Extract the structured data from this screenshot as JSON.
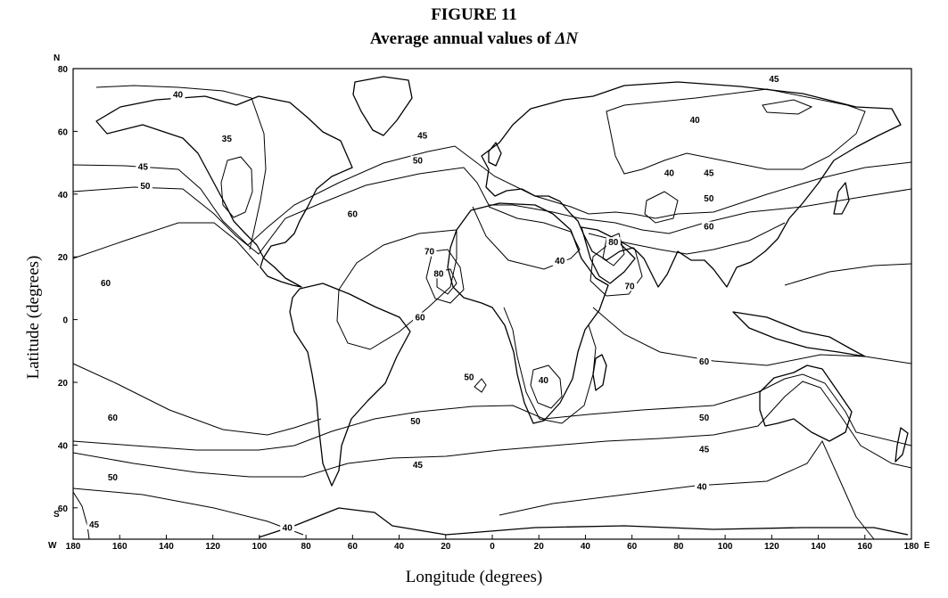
{
  "figure": {
    "title": "FIGURE 11",
    "subtitle_prefix": "Average annual values of ",
    "subtitle_symbol": "ΔN"
  },
  "axes": {
    "y_label": "Latitude (degrees)",
    "x_label": "Longitude (degrees)",
    "lat_ticks": [
      "80",
      "60",
      "40",
      "20",
      "0",
      "20",
      "40",
      "60"
    ],
    "lon_ticks": [
      "180",
      "160",
      "140",
      "120",
      "100",
      "80",
      "60",
      "40",
      "20",
      "0",
      "20",
      "40",
      "60",
      "80",
      "100",
      "120",
      "140",
      "160",
      "180"
    ],
    "north": "N",
    "south": "S",
    "west": "W",
    "east": "E",
    "lat_range": [
      -70,
      80
    ],
    "lon_range": [
      -180,
      180
    ]
  },
  "contour_labels": [
    {
      "text": "40",
      "lon": -135,
      "lat": 71
    },
    {
      "text": "35",
      "lon": -114,
      "lat": 57
    },
    {
      "text": "45",
      "lon": -150,
      "lat": 48
    },
    {
      "text": "50",
      "lon": -149,
      "lat": 42
    },
    {
      "text": "45",
      "lon": -30,
      "lat": 58
    },
    {
      "text": "50",
      "lon": -32,
      "lat": 50
    },
    {
      "text": "60",
      "lon": -60,
      "lat": 33
    },
    {
      "text": "60",
      "lon": -166,
      "lat": 11
    },
    {
      "text": "70",
      "lon": -27,
      "lat": 21
    },
    {
      "text": "80",
      "lon": -23,
      "lat": 14
    },
    {
      "text": "60",
      "lon": -31,
      "lat": 0
    },
    {
      "text": "40",
      "lon": 29,
      "lat": 18
    },
    {
      "text": "80",
      "lon": 52,
      "lat": 24
    },
    {
      "text": "70",
      "lon": 59,
      "lat": 10
    },
    {
      "text": "45",
      "lon": 121,
      "lat": 76
    },
    {
      "text": "40",
      "lon": 87,
      "lat": 63
    },
    {
      "text": "40",
      "lon": 76,
      "lat": 46
    },
    {
      "text": "45",
      "lon": 93,
      "lat": 46
    },
    {
      "text": "50",
      "lon": 93,
      "lat": 38
    },
    {
      "text": "60",
      "lon": 93,
      "lat": 29
    },
    {
      "text": "60",
      "lon": 91,
      "lat": -14
    },
    {
      "text": "50",
      "lon": -10,
      "lat": -19
    },
    {
      "text": "40",
      "lon": 22,
      "lat": -20
    },
    {
      "text": "60",
      "lon": -163,
      "lat": -32
    },
    {
      "text": "50",
      "lon": -33,
      "lat": -33
    },
    {
      "text": "50",
      "lon": 91,
      "lat": -32
    },
    {
      "text": "45",
      "lon": -32,
      "lat": -47
    },
    {
      "text": "45",
      "lon": 91,
      "lat": -42
    },
    {
      "text": "50",
      "lon": -163,
      "lat": -51
    },
    {
      "text": "40",
      "lon": 90,
      "lat": -54
    },
    {
      "text": "45",
      "lon": -171,
      "lat": -66
    },
    {
      "text": "40",
      "lon": -88,
      "lat": -67
    }
  ]
}
